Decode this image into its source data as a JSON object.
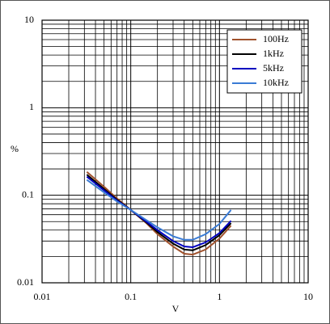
{
  "chart_data": {
    "type": "line",
    "x_label": "V",
    "y_label": "%",
    "x": [
      0.032,
      0.05,
      0.07,
      0.1,
      0.15,
      0.2,
      0.3,
      0.4,
      0.5,
      0.7,
      1.0,
      1.35
    ],
    "series": [
      {
        "name": "100Hz",
        "color": "#a0522d",
        "values": [
          0.185,
          0.125,
          0.092,
          0.068,
          0.048,
          0.036,
          0.026,
          0.0215,
          0.021,
          0.024,
          0.032,
          0.045
        ]
      },
      {
        "name": "1kHz",
        "color": "#000000",
        "values": [
          0.172,
          0.118,
          0.089,
          0.068,
          0.049,
          0.038,
          0.028,
          0.024,
          0.0235,
          0.027,
          0.035,
          0.048
        ]
      },
      {
        "name": "5kHz",
        "color": "#0000c0",
        "values": [
          0.163,
          0.114,
          0.087,
          0.068,
          0.05,
          0.04,
          0.03,
          0.026,
          0.0255,
          0.029,
          0.037,
          0.051
        ]
      },
      {
        "name": "10kHz",
        "color": "#3a7bd5",
        "values": [
          0.15,
          0.108,
          0.085,
          0.068,
          0.052,
          0.043,
          0.034,
          0.031,
          0.031,
          0.036,
          0.047,
          0.068
        ]
      }
    ],
    "xlim": [
      0.01,
      10
    ],
    "ylim": [
      0.01,
      10
    ],
    "xticks": [
      0.01,
      0.1,
      1,
      10
    ],
    "yticks": [
      0.01,
      0.1,
      1,
      10
    ],
    "log_x": true,
    "log_y": true,
    "grid": true,
    "minor_grid": true,
    "legend": "top-right"
  }
}
